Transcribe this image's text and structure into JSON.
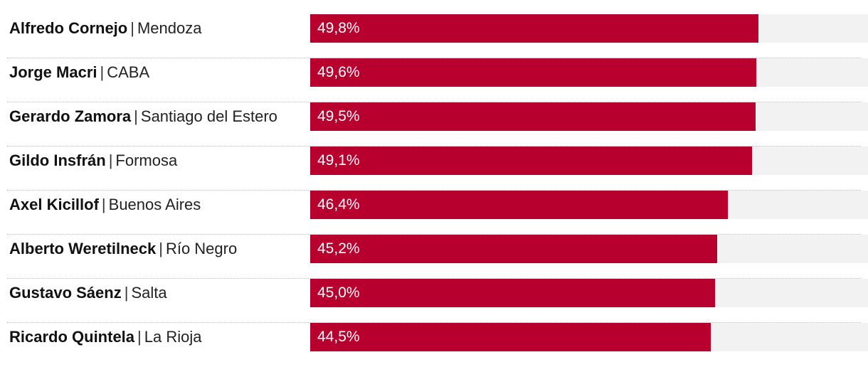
{
  "chart_data": {
    "type": "bar",
    "orientation": "horizontal",
    "title": "",
    "xlabel": "",
    "ylabel": "",
    "xlim": [
      0,
      62
    ],
    "colors": {
      "bar": "#b8002f",
      "track": "#f2f2f2"
    },
    "rows": [
      {
        "name": "Alfredo Cornejo",
        "province": "Mendoza",
        "value": 49.8,
        "label": "49,8%"
      },
      {
        "name": "Jorge Macri",
        "province": "CABA",
        "value": 49.6,
        "label": "49,6%"
      },
      {
        "name": "Gerardo Zamora",
        "province": "Santiago del Estero",
        "value": 49.5,
        "label": "49,5%"
      },
      {
        "name": "Gildo Insfrán",
        "province": "Formosa",
        "value": 49.1,
        "label": "49,1%"
      },
      {
        "name": "Axel Kicillof",
        "province": "Buenos Aires",
        "value": 46.4,
        "label": "46,4%"
      },
      {
        "name": "Alberto Weretilneck",
        "province": "Río Negro",
        "value": 45.2,
        "label": "45,2%"
      },
      {
        "name": "Gustavo Sáenz",
        "province": "Salta",
        "value": 45.0,
        "label": "45,0%"
      },
      {
        "name": "Ricardo Quintela",
        "province": "La Rioja",
        "value": 44.5,
        "label": "44,5%"
      }
    ]
  }
}
